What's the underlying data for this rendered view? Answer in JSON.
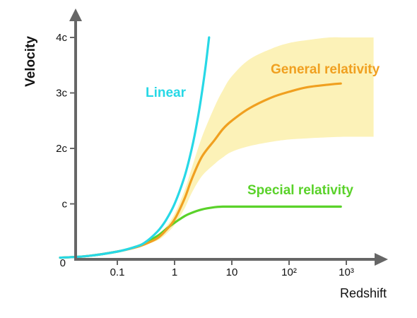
{
  "chart_data": {
    "type": "line",
    "title": "",
    "xlabel": "Redshift",
    "ylabel": "Velocity",
    "x_scale": "log",
    "x_ticks": [
      {
        "value": 0.1,
        "label": "0.1"
      },
      {
        "value": 1,
        "label": "1"
      },
      {
        "value": 10,
        "label": "10"
      },
      {
        "value": 100,
        "label": "10²"
      },
      {
        "value": 1000,
        "label": "10³"
      }
    ],
    "y_ticks": [
      {
        "value": 0,
        "label": "0"
      },
      {
        "value": 1,
        "label": "c"
      },
      {
        "value": 2,
        "label": "2c"
      },
      {
        "value": 3,
        "label": "3c"
      },
      {
        "value": 4,
        "label": "4c"
      }
    ],
    "xlim": [
      0.01,
      3000
    ],
    "ylim": [
      0,
      4.4
    ],
    "grid": false,
    "legend": "none",
    "series": [
      {
        "name": "Linear",
        "color": "#27d8e6",
        "x": [
          0.01,
          0.03,
          0.1,
          0.2,
          0.3,
          0.5,
          0.7,
          1.0,
          1.5,
          2.0,
          2.5,
          3.0,
          3.5,
          4.0
        ],
        "y": [
          0.03,
          0.06,
          0.14,
          0.22,
          0.3,
          0.5,
          0.7,
          1.0,
          1.5,
          2.0,
          2.5,
          3.0,
          3.5,
          4.0
        ]
      },
      {
        "name": "General relativity",
        "color": "#f0a020",
        "x": [
          0.01,
          0.03,
          0.1,
          0.2,
          0.3,
          0.5,
          0.7,
          1.0,
          1.5,
          2.0,
          3.0,
          5.0,
          7.0,
          10,
          20,
          50,
          100,
          200,
          500,
          800
        ],
        "y": [
          0.03,
          0.06,
          0.14,
          0.21,
          0.27,
          0.38,
          0.52,
          0.72,
          1.1,
          1.45,
          1.85,
          2.15,
          2.35,
          2.5,
          2.72,
          2.92,
          3.02,
          3.1,
          3.15,
          3.17
        ]
      },
      {
        "name": "Special relativity",
        "color": "#5ad22a",
        "x": [
          0.01,
          0.03,
          0.1,
          0.2,
          0.3,
          0.5,
          0.7,
          1.0,
          1.5,
          2.0,
          3.0,
          5.0,
          7.0,
          10,
          30,
          100,
          300,
          800
        ],
        "y": [
          0.03,
          0.06,
          0.14,
          0.22,
          0.29,
          0.42,
          0.54,
          0.66,
          0.78,
          0.84,
          0.9,
          0.94,
          0.95,
          0.95,
          0.95,
          0.95,
          0.95,
          0.95
        ]
      }
    ],
    "band": {
      "color": "#fcf2b8",
      "x": [
        0.3,
        0.5,
        0.7,
        1.0,
        1.5,
        2.0,
        3.0,
        5.0,
        7.0,
        10,
        20,
        50,
        100,
        200,
        500,
        1000,
        3000
      ],
      "y_low": [
        0.26,
        0.34,
        0.45,
        0.62,
        0.92,
        1.2,
        1.5,
        1.72,
        1.84,
        1.94,
        2.04,
        2.12,
        2.16,
        2.18,
        2.2,
        2.21,
        2.21
      ],
      "y_high": [
        0.27,
        0.4,
        0.58,
        0.82,
        1.25,
        1.65,
        2.2,
        2.75,
        3.05,
        3.3,
        3.6,
        3.8,
        3.9,
        3.95,
        4.0,
        4.0,
        4.0
      ]
    }
  }
}
